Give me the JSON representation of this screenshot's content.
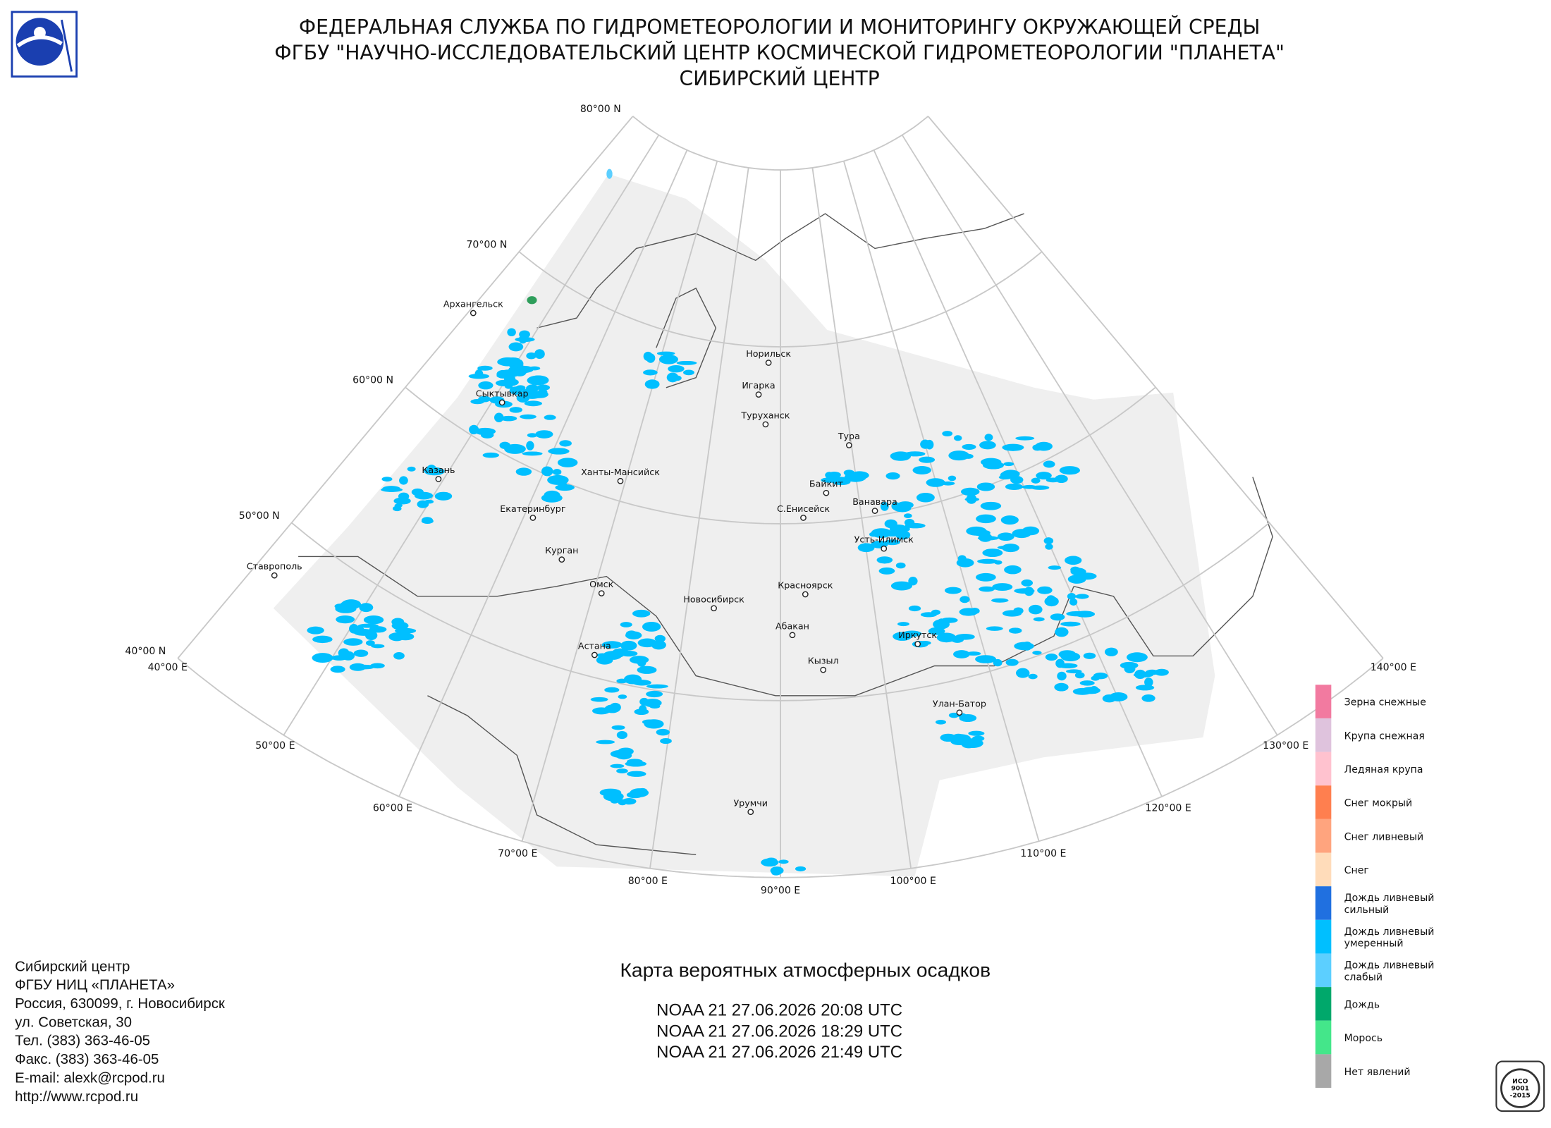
{
  "header": {
    "lines": [
      "ФЕДЕРАЛЬНАЯ СЛУЖБА ПО ГИДРОМЕТЕОРОЛОГИИ И МОНИТОРИНГУ ОКРУЖАЮЩЕЙ СРЕДЫ",
      "ФГБУ \"НАУЧНО-ИССЛЕДОВАТЕЛЬСКИЙ ЦЕНТР КОСМИЧЕСКОЙ ГИДРОМЕТЕОРОЛОГИИ \"ПЛАНЕТА\"",
      "СИБИРСКИЙ ЦЕНТР"
    ]
  },
  "map": {
    "lat_labels": [
      "40°00 N",
      "50°00 N",
      "60°00 N",
      "70°00 N",
      "80°00 N"
    ],
    "lon_labels": [
      "40°00 E",
      "50°00 E",
      "60°00 E",
      "70°00 E",
      "80°00 E",
      "90°00 E",
      "100°00 E",
      "110°00 E",
      "120°00 E",
      "130°00 E",
      "140°00 E"
    ],
    "cities": [
      "Архангельск",
      "Сыктывкар",
      "Казань",
      "Екатеринбург",
      "Ставрополь",
      "Курган",
      "Ханты-Мансийск",
      "Омск",
      "Астана",
      "Новосибирск",
      "Норильск",
      "Игарка",
      "Туруханск",
      "Тура",
      "Байкит",
      "Ванавара",
      "С.Енисейск",
      "Усть-Илимск",
      "Красноярск",
      "Абакан",
      "Кызыл",
      "Иркутск",
      "Улан-Батор",
      "Урумчи"
    ]
  },
  "legend": [
    {
      "label": [
        "Зерна снежные"
      ],
      "color": "#f27aa0"
    },
    {
      "label": [
        "Крупа снежная"
      ],
      "color": "#dfc3dd"
    },
    {
      "label": [
        "Ледяная крупа"
      ],
      "color": "#ffc2cf"
    },
    {
      "label": [
        "Снег мокрый"
      ],
      "color": "#ff7f4f"
    },
    {
      "label": [
        "Снег ливневый"
      ],
      "color": "#ffa47e"
    },
    {
      "label": [
        "Снег"
      ],
      "color": "#ffdcba"
    },
    {
      "label": [
        "Дождь ливневый",
        "сильный"
      ],
      "color": "#2070e0"
    },
    {
      "label": [
        "Дождь ливневый",
        "умеренный"
      ],
      "color": "#00bfff"
    },
    {
      "label": [
        "Дождь ливневый",
        "слабый"
      ],
      "color": "#5ccfff"
    },
    {
      "label": [
        "Дождь"
      ],
      "color": "#00a86b"
    },
    {
      "label": [
        "Морось"
      ],
      "color": "#44e68a"
    },
    {
      "label": [
        "Нет явлений"
      ],
      "color": "#a8a8a8"
    }
  ],
  "contacts": [
    "Сибирский центр",
    "ФГБУ НИЦ «ПЛАНЕТА»",
    "Россия, 630099, г. Новосибирск",
    "ул. Советская, 30",
    "Тел. (383) 363-46-05",
    "Факс. (383) 363-46-05",
    "E-mail: alexk@rcpod.ru",
    "http://www.rcpod.ru"
  ],
  "map_title": "Карта вероятных атмосферных осадков",
  "passes": [
    "NOAA 21 27.06.2026  20:08 UTC",
    "NOAA 21 27.06.2026  18:29 UTC",
    "NOAA 21 27.06.2026  21:49 UTC"
  ],
  "iso_logo": [
    "ИСО",
    "9001",
    "-2015"
  ]
}
